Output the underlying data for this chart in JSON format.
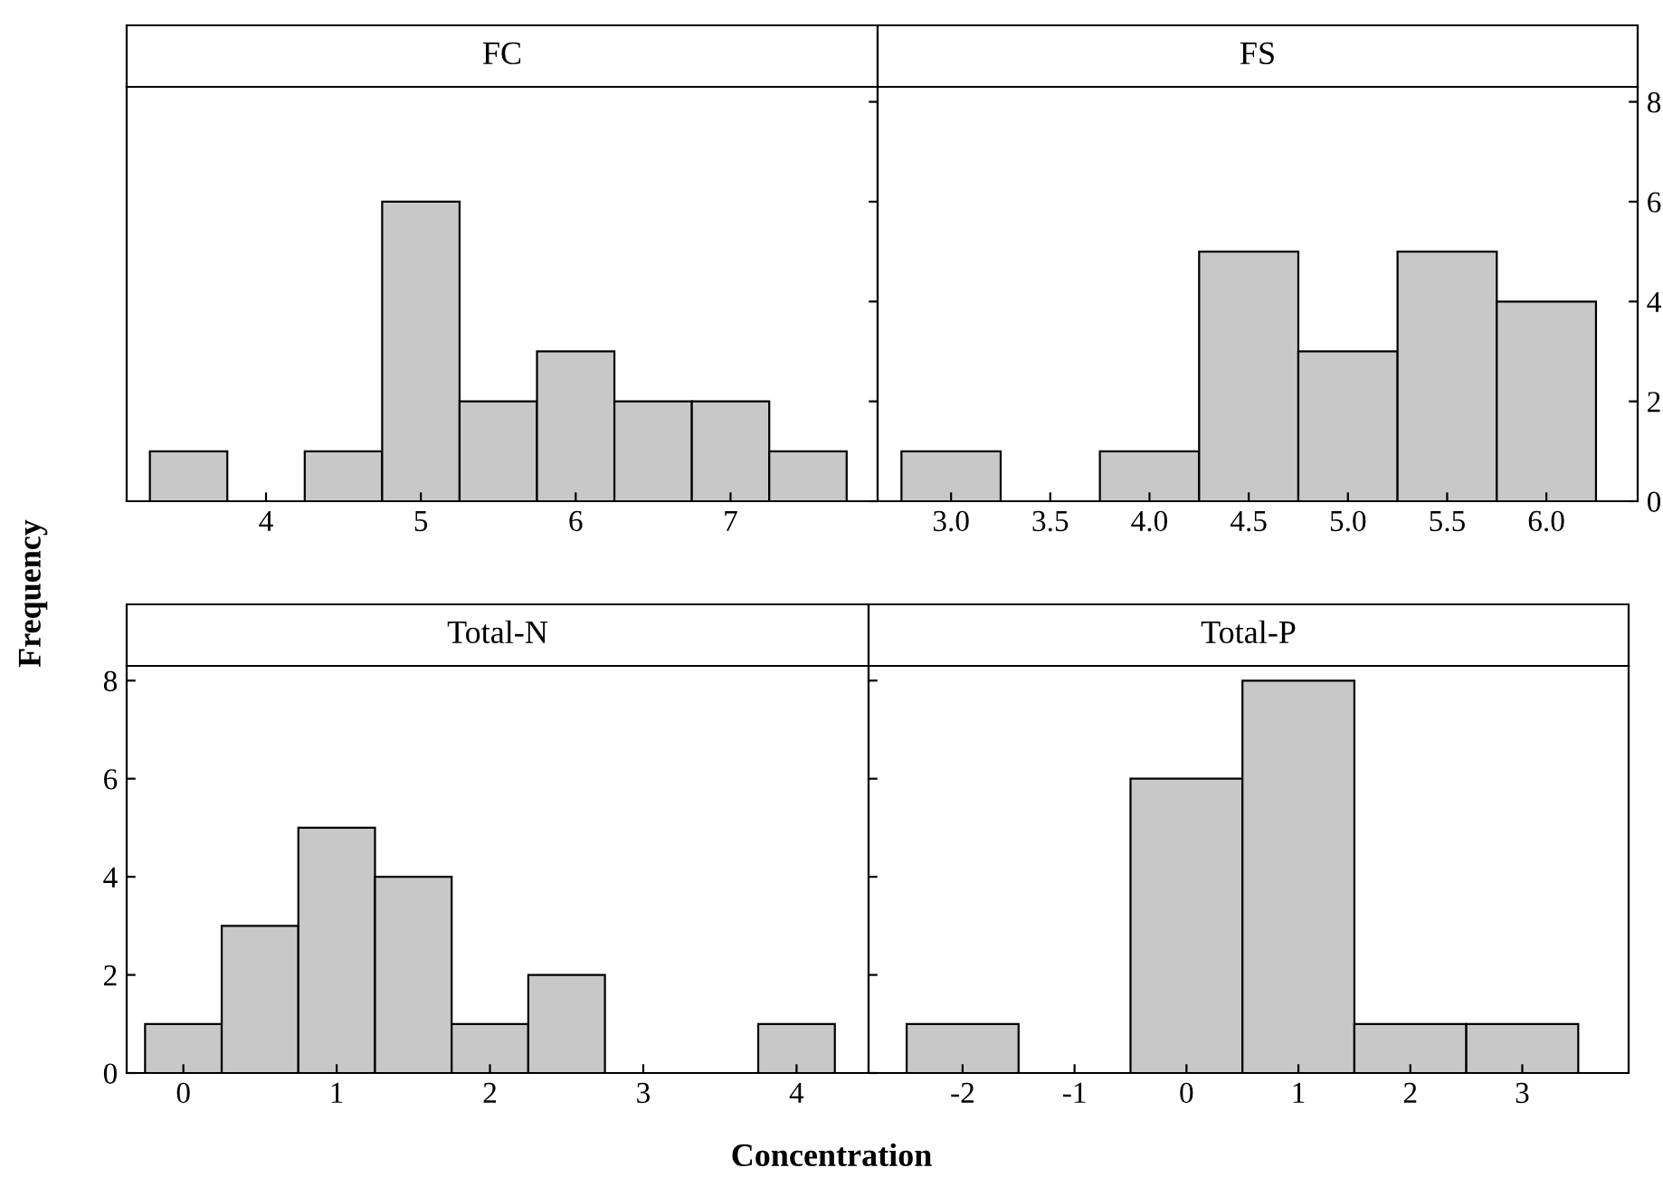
{
  "chart_data": [
    {
      "type": "histogram",
      "title": "FC",
      "ylabel": "Frequency",
      "bins": [
        3.25,
        3.75,
        4.25,
        4.75,
        5.25,
        5.75,
        6.25,
        6.75,
        7.25,
        7.75
      ],
      "values": [
        1,
        0,
        1,
        6,
        2,
        3,
        2,
        2,
        1
      ],
      "color": "#c8c8c8",
      "xlim": [
        3.1,
        7.95
      ],
      "xticks": [
        4,
        5,
        6,
        7
      ],
      "ylim": [
        0,
        8.3
      ],
      "yticks": [
        0,
        2,
        4,
        6,
        8
      ],
      "tick_labels": "x",
      "grid": false,
      "legend": false
    },
    {
      "type": "histogram",
      "title": "FS",
      "bins": [
        2.75,
        3.25,
        3.75,
        4.25,
        4.75,
        5.25,
        5.75,
        6.25
      ],
      "values": [
        1,
        0,
        1,
        5,
        3,
        5,
        4
      ],
      "color": "#c8c8c8",
      "xlim": [
        2.63,
        6.46
      ],
      "xticks": [
        {
          "value": 3,
          "label": "3.0"
        },
        3.5,
        {
          "value": 4,
          "label": "4.0"
        },
        4.5,
        {
          "value": 5,
          "label": "5.0"
        },
        5.5,
        {
          "value": 6,
          "label": "6.0"
        }
      ],
      "ylim": [
        0,
        8.3
      ],
      "yticks": [
        0,
        2,
        4,
        6,
        8
      ],
      "grid": false,
      "legend": false
    },
    {
      "type": "histogram",
      "title": "Total-N",
      "xlabel": "Concentration",
      "bins": [
        -0.25,
        0.25,
        0.75,
        1.25,
        1.75,
        2.25,
        2.75,
        3.25,
        3.75,
        4.25
      ],
      "values": [
        1,
        3,
        5,
        4,
        1,
        2,
        0,
        0,
        1
      ],
      "color": "#c8c8c8",
      "xlim": [
        -0.37,
        4.47
      ],
      "xticks": [
        0,
        1,
        2,
        3,
        4
      ],
      "ylim": [
        0,
        8.3
      ],
      "yticks": [
        0,
        2,
        4,
        6,
        8
      ],
      "grid": false,
      "legend": false
    },
    {
      "type": "histogram",
      "title": "Total-P",
      "bins": [
        -2.5,
        -1.5,
        -0.5,
        0.5,
        1.5,
        2.5,
        3.5
      ],
      "values": [
        1,
        0,
        6,
        8,
        1,
        1
      ],
      "color": "#c8c8c8",
      "xlim": [
        -2.84,
        3.95
      ],
      "xticks": [
        -2,
        -1,
        0,
        1,
        2,
        3
      ],
      "ylim": [
        0,
        8.3
      ],
      "yticks": [
        0,
        2,
        4,
        6,
        8
      ],
      "tick_labels": "x",
      "grid": false,
      "legend": false
    }
  ]
}
